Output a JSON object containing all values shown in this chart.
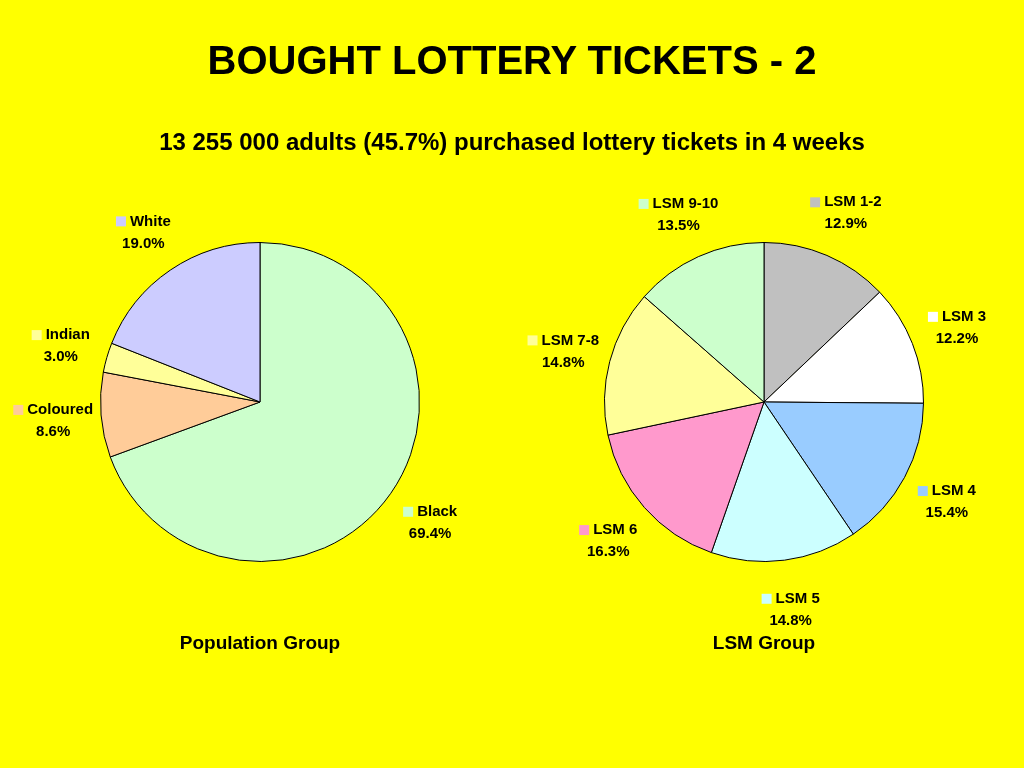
{
  "chart_data": [
    {
      "type": "pie",
      "title": "BOUGHT LOTTERY TICKETS - 2",
      "subtitle": "13 255 000 adults (45.7%) purchased lottery tickets in 4 weeks",
      "xlabel": "Population Group",
      "categories": [
        "Black",
        "Coloured",
        "Indian",
        "White"
      ],
      "values": [
        69.4,
        8.6,
        3.0,
        19.0
      ],
      "value_labels": [
        "69.4%",
        "8.6%",
        "3.0%",
        "19.0%"
      ],
      "colors": [
        "#ccffcc",
        "#ffcc99",
        "#ffff99",
        "#ccccff"
      ],
      "legend": "top left"
    },
    {
      "type": "pie",
      "xlabel": "LSM Group",
      "categories": [
        "LSM 1-2",
        "LSM 3",
        "LSM 4",
        "LSM 5",
        "LSM 6",
        "LSM 7-8",
        "LSM 9-10"
      ],
      "values": [
        12.9,
        12.2,
        15.4,
        14.8,
        16.3,
        14.8,
        13.5
      ],
      "value_labels": [
        "12.9%",
        "12.2%",
        "15.4%",
        "14.8%",
        "16.3%",
        "14.8%",
        "13.5%"
      ],
      "colors": [
        "#c0c0c0",
        "#ffffff",
        "#99ccff",
        "#ccffff",
        "#ff99cc",
        "#ffff99",
        "#ccffcc"
      ],
      "legend": "top left"
    }
  ]
}
